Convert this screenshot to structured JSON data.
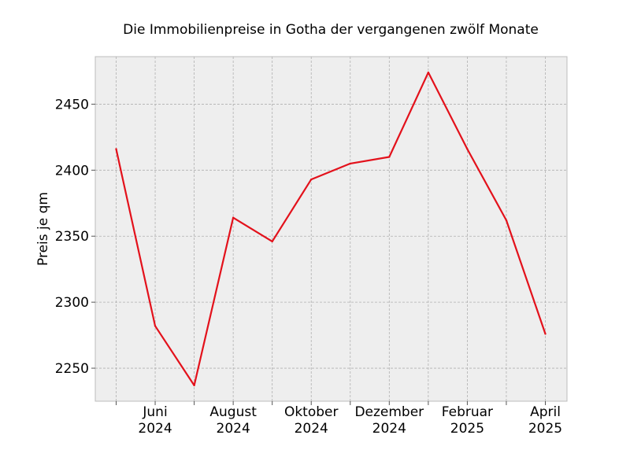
{
  "chart_data": {
    "type": "line",
    "title": "Die Immobilienpreise in Gotha der vergangenen zwölf Monate",
    "xlabel": "",
    "ylabel": "Preis je qm",
    "x": [
      "2024-05",
      "2024-06",
      "2024-07",
      "2024-08",
      "2024-09",
      "2024-10",
      "2024-11",
      "2024-12",
      "2025-01",
      "2025-02",
      "2025-03",
      "2025-04"
    ],
    "x_tick_labels": [
      {
        "month": "Juni",
        "year": "2024",
        "x": "2024-06"
      },
      {
        "month": "August",
        "year": "2024",
        "x": "2024-08"
      },
      {
        "month": "Oktober",
        "year": "2024",
        "x": "2024-10"
      },
      {
        "month": "Dezember",
        "year": "2024",
        "x": "2024-12"
      },
      {
        "month": "Februar",
        "year": "2025",
        "x": "2025-02"
      },
      {
        "month": "April",
        "year": "2025",
        "x": "2025-04"
      }
    ],
    "yticks": [
      2250,
      2300,
      2350,
      2400,
      2450
    ],
    "ylim": [
      2225,
      2486
    ],
    "grid": true,
    "series": [
      {
        "color": "#e3111b",
        "values": [
          2416,
          2282,
          2237,
          2364,
          2346,
          2393,
          2405,
          2410,
          2474,
          2416,
          2362,
          2276
        ]
      }
    ],
    "colors": {
      "plot_background": "#eeeeee",
      "line": "#e3111b"
    }
  }
}
